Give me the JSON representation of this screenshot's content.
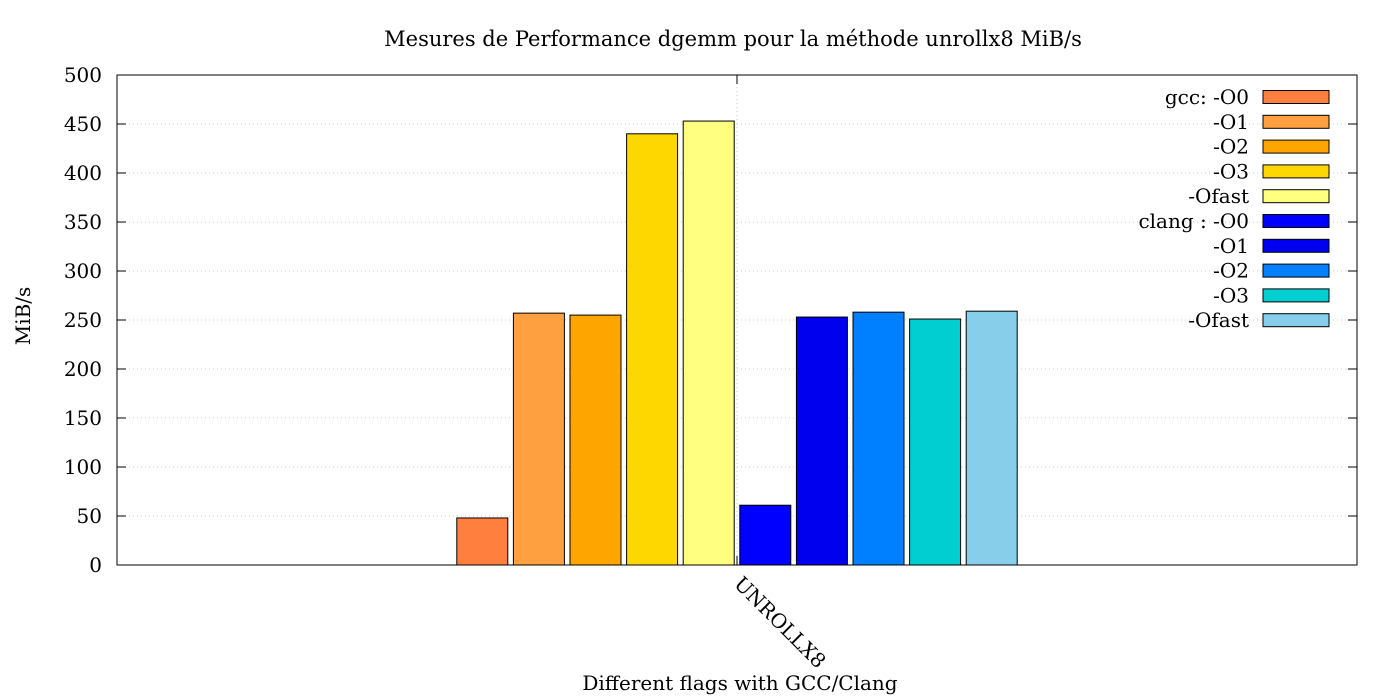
{
  "chart_data": {
    "type": "bar",
    "title": "Mesures de Performance dgemm pour la méthode unrollx8 MiB/s",
    "xlabel": "Different flags with GCC/Clang",
    "ylabel": "MiB/s",
    "categories": [
      "UNROLLX8"
    ],
    "ylim": [
      0,
      500
    ],
    "yticks": [
      0,
      50,
      100,
      150,
      200,
      250,
      300,
      350,
      400,
      450,
      500
    ],
    "grid": true,
    "legend_position": "top-right",
    "series": [
      {
        "name": "gcc: -O0",
        "values": [
          48
        ],
        "color": "#ff7f3f"
      },
      {
        "name": "-O1",
        "values": [
          257
        ],
        "color": "#ffa040"
      },
      {
        "name": "-O2",
        "values": [
          255
        ],
        "color": "#ffa500"
      },
      {
        "name": "-O3",
        "values": [
          440
        ],
        "color": "#ffd700"
      },
      {
        "name": "-Ofast",
        "values": [
          453
        ],
        "color": "#ffff80"
      },
      {
        "name": "clang : -O0",
        "values": [
          61
        ],
        "color": "#0000ff"
      },
      {
        "name": "-O1",
        "values": [
          253
        ],
        "color": "#0000ee"
      },
      {
        "name": "-O2",
        "values": [
          258
        ],
        "color": "#0080ff"
      },
      {
        "name": "-O3",
        "values": [
          251
        ],
        "color": "#00ced1"
      },
      {
        "name": "-Ofast",
        "values": [
          259
        ],
        "color": "#87ceeb"
      }
    ]
  }
}
